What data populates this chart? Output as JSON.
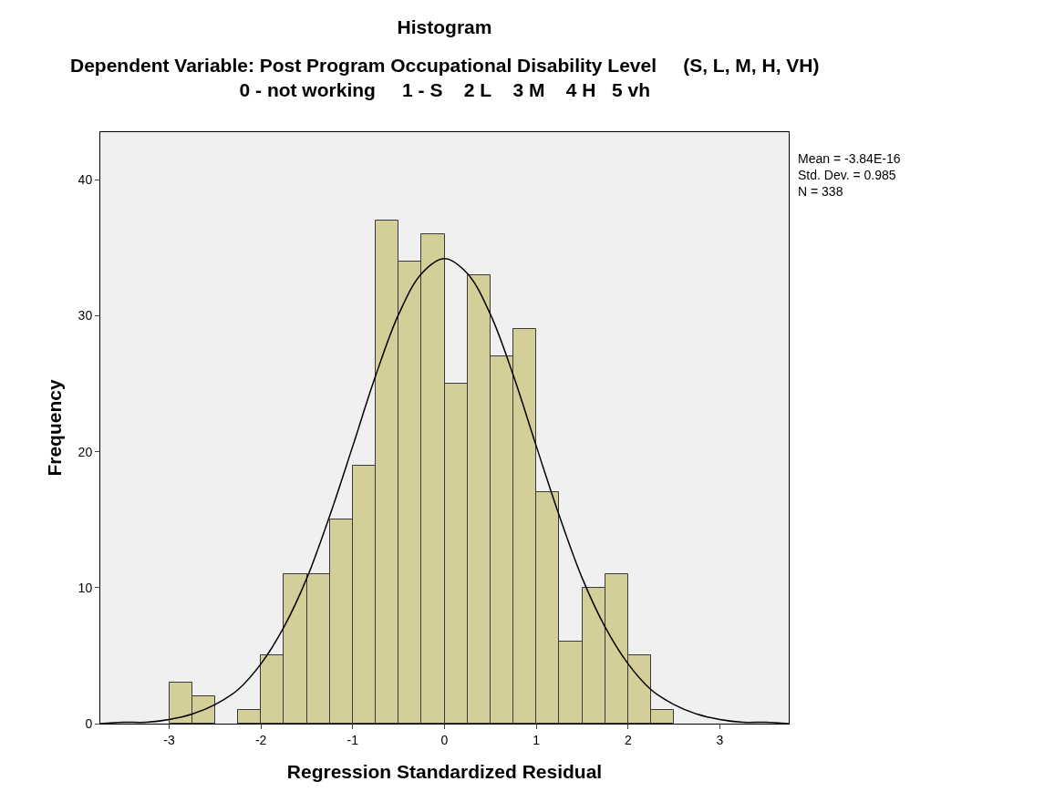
{
  "chart_data": {
    "type": "histogram",
    "title": "Histogram",
    "subtitle": "Dependent Variable: Post Program Occupational Disability Level     (S, L, M, H, VH)\n0 - not working     1 - S    2 L    3 M    4 H   5 vh",
    "xlabel": "Regression Standardized Residual",
    "ylabel": "Frequency",
    "bins": [
      -3,
      -2.75,
      -2.5,
      -2.25,
      -2,
      -1.75,
      -1.5,
      -1.25,
      -1,
      -0.75,
      -0.5,
      -0.25,
      0,
      0.25,
      0.5,
      0.75,
      1,
      1.25,
      1.5,
      1.75,
      2,
      2.25,
      2.5
    ],
    "values": [
      3,
      2,
      0,
      1,
      5,
      11,
      11,
      15,
      19,
      37,
      34,
      36,
      25,
      33,
      27,
      29,
      17,
      6,
      10,
      11,
      5,
      1
    ],
    "color": "#d4cf98",
    "series": [
      {
        "type": "line",
        "color": "#000000",
        "x": [
          -3.75,
          -3.5,
          -3.25,
          -3,
          -2.75,
          -2.5,
          -2.25,
          -2,
          -1.75,
          -1.5,
          -1.25,
          -1,
          -0.75,
          -0.5,
          -0.25,
          0,
          0.25,
          0.5,
          0.75,
          1,
          1.25,
          1.5,
          1.75,
          2,
          2.25,
          2.5,
          2.75,
          3,
          3.25,
          3.5,
          3.75
        ],
        "values": [
          0.0,
          0.1,
          0.1,
          0.3,
          0.7,
          1.4,
          2.5,
          4.4,
          7.1,
          10.7,
          15.3,
          20.4,
          25.6,
          30.1,
          33.1,
          34.2,
          33.1,
          30.1,
          25.6,
          20.4,
          15.3,
          10.7,
          7.1,
          4.4,
          2.5,
          1.4,
          0.7,
          0.3,
          0.1,
          0.1,
          0.0
        ]
      }
    ],
    "xlim": [
      -3.75,
      3.75
    ],
    "xticks": [
      -3,
      -2,
      -1,
      0,
      1,
      2,
      3
    ],
    "ylim": [
      0,
      43.5
    ],
    "yticks": [
      0,
      10,
      20,
      30,
      40
    ],
    "grid": false,
    "annotations": [
      "Mean = -3.84E-16\nStd. Dev. = 0.985\nN = 338"
    ]
  }
}
